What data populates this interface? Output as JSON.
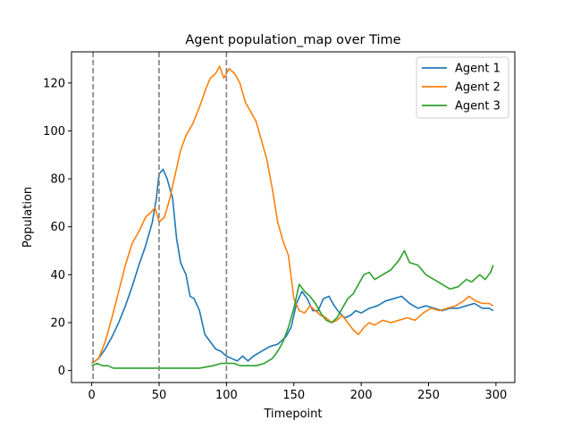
{
  "chart_data": {
    "type": "line",
    "title": "Agent population_map over Time",
    "xlabel": "Timepoint",
    "ylabel": "Population",
    "xlim": [
      -15,
      314
    ],
    "ylim": [
      -5,
      133
    ],
    "xticks": [
      0,
      50,
      100,
      150,
      200,
      250,
      300
    ],
    "yticks": [
      0,
      20,
      40,
      60,
      80,
      100,
      120
    ],
    "grid": false,
    "legend": "top-right",
    "vlines": [
      1,
      50,
      100
    ],
    "series": [
      {
        "name": "Agent 1",
        "color": "#1f77b4",
        "points": [
          [
            0,
            3
          ],
          [
            5,
            5
          ],
          [
            10,
            9
          ],
          [
            15,
            14
          ],
          [
            20,
            20
          ],
          [
            25,
            27
          ],
          [
            30,
            35
          ],
          [
            35,
            44
          ],
          [
            40,
            52
          ],
          [
            45,
            62
          ],
          [
            48,
            72
          ],
          [
            50,
            82
          ],
          [
            53,
            84
          ],
          [
            56,
            80
          ],
          [
            60,
            72
          ],
          [
            63,
            55
          ],
          [
            66,
            45
          ],
          [
            70,
            40
          ],
          [
            73,
            31
          ],
          [
            76,
            30
          ],
          [
            80,
            25
          ],
          [
            84,
            15
          ],
          [
            88,
            12
          ],
          [
            92,
            9
          ],
          [
            96,
            8
          ],
          [
            100,
            6
          ],
          [
            104,
            5
          ],
          [
            108,
            4
          ],
          [
            112,
            6
          ],
          [
            116,
            4
          ],
          [
            120,
            6
          ],
          [
            126,
            8
          ],
          [
            132,
            10
          ],
          [
            138,
            11
          ],
          [
            144,
            14
          ],
          [
            148,
            18
          ],
          [
            152,
            28
          ],
          [
            156,
            33
          ],
          [
            160,
            30
          ],
          [
            164,
            25
          ],
          [
            168,
            25
          ],
          [
            172,
            30
          ],
          [
            176,
            31
          ],
          [
            180,
            27
          ],
          [
            184,
            24
          ],
          [
            188,
            22
          ],
          [
            192,
            23
          ],
          [
            196,
            25
          ],
          [
            200,
            24
          ],
          [
            206,
            26
          ],
          [
            212,
            27
          ],
          [
            218,
            29
          ],
          [
            224,
            30
          ],
          [
            230,
            31
          ],
          [
            236,
            28
          ],
          [
            242,
            26
          ],
          [
            248,
            27
          ],
          [
            254,
            26
          ],
          [
            260,
            25
          ],
          [
            266,
            26
          ],
          [
            272,
            26
          ],
          [
            278,
            27
          ],
          [
            284,
            28
          ],
          [
            290,
            26
          ],
          [
            295,
            26
          ],
          [
            298,
            25
          ]
        ]
      },
      {
        "name": "Agent 2",
        "color": "#ff7f0e",
        "points": [
          [
            0,
            3
          ],
          [
            5,
            5
          ],
          [
            10,
            12
          ],
          [
            15,
            22
          ],
          [
            20,
            33
          ],
          [
            25,
            44
          ],
          [
            30,
            53
          ],
          [
            35,
            58
          ],
          [
            40,
            64
          ],
          [
            44,
            66
          ],
          [
            47,
            68
          ],
          [
            50,
            62
          ],
          [
            54,
            64
          ],
          [
            58,
            72
          ],
          [
            62,
            82
          ],
          [
            66,
            92
          ],
          [
            70,
            98
          ],
          [
            75,
            103
          ],
          [
            80,
            110
          ],
          [
            85,
            118
          ],
          [
            88,
            122
          ],
          [
            92,
            124
          ],
          [
            95,
            127
          ],
          [
            98,
            122
          ],
          [
            102,
            126
          ],
          [
            106,
            124
          ],
          [
            110,
            120
          ],
          [
            114,
            112
          ],
          [
            118,
            108
          ],
          [
            122,
            104
          ],
          [
            126,
            96
          ],
          [
            130,
            88
          ],
          [
            134,
            76
          ],
          [
            138,
            62
          ],
          [
            142,
            54
          ],
          [
            146,
            48
          ],
          [
            150,
            30
          ],
          [
            154,
            25
          ],
          [
            158,
            24
          ],
          [
            162,
            27
          ],
          [
            166,
            25
          ],
          [
            170,
            23
          ],
          [
            174,
            22
          ],
          [
            178,
            20
          ],
          [
            182,
            21
          ],
          [
            186,
            23
          ],
          [
            190,
            20
          ],
          [
            194,
            17
          ],
          [
            198,
            15
          ],
          [
            202,
            18
          ],
          [
            206,
            20
          ],
          [
            210,
            19
          ],
          [
            216,
            21
          ],
          [
            222,
            20
          ],
          [
            228,
            21
          ],
          [
            234,
            22
          ],
          [
            240,
            21
          ],
          [
            246,
            24
          ],
          [
            252,
            26
          ],
          [
            258,
            25
          ],
          [
            264,
            26
          ],
          [
            270,
            27
          ],
          [
            276,
            29
          ],
          [
            280,
            31
          ],
          [
            285,
            29
          ],
          [
            290,
            28
          ],
          [
            295,
            28
          ],
          [
            298,
            27
          ]
        ]
      },
      {
        "name": "Agent 3",
        "color": "#2ca02c",
        "points": [
          [
            0,
            2
          ],
          [
            4,
            3
          ],
          [
            8,
            2
          ],
          [
            12,
            2
          ],
          [
            16,
            1
          ],
          [
            20,
            1
          ],
          [
            30,
            1
          ],
          [
            40,
            1
          ],
          [
            50,
            1
          ],
          [
            60,
            1
          ],
          [
            70,
            1
          ],
          [
            80,
            1
          ],
          [
            90,
            2
          ],
          [
            96,
            3
          ],
          [
            100,
            3
          ],
          [
            106,
            3
          ],
          [
            110,
            2
          ],
          [
            116,
            2
          ],
          [
            122,
            2
          ],
          [
            128,
            3
          ],
          [
            134,
            5
          ],
          [
            138,
            8
          ],
          [
            142,
            12
          ],
          [
            146,
            18
          ],
          [
            150,
            26
          ],
          [
            154,
            36
          ],
          [
            158,
            33
          ],
          [
            162,
            31
          ],
          [
            166,
            28
          ],
          [
            170,
            24
          ],
          [
            174,
            21
          ],
          [
            178,
            20
          ],
          [
            182,
            22
          ],
          [
            186,
            26
          ],
          [
            190,
            30
          ],
          [
            194,
            32
          ],
          [
            198,
            36
          ],
          [
            202,
            40
          ],
          [
            206,
            41
          ],
          [
            210,
            38
          ],
          [
            216,
            40
          ],
          [
            222,
            42
          ],
          [
            228,
            46
          ],
          [
            232,
            50
          ],
          [
            236,
            45
          ],
          [
            242,
            44
          ],
          [
            248,
            40
          ],
          [
            254,
            38
          ],
          [
            260,
            36
          ],
          [
            266,
            34
          ],
          [
            272,
            35
          ],
          [
            278,
            38
          ],
          [
            282,
            37
          ],
          [
            288,
            40
          ],
          [
            292,
            38
          ],
          [
            296,
            41
          ],
          [
            298,
            44
          ]
        ]
      }
    ]
  }
}
